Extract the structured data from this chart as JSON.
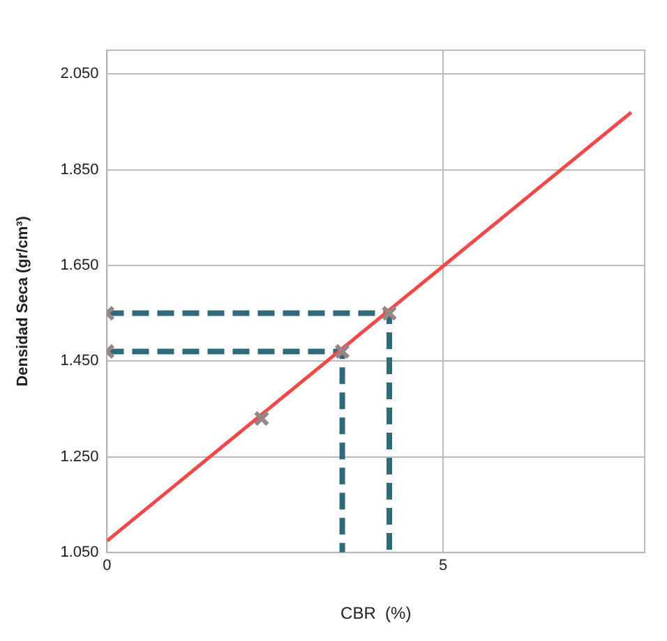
{
  "chart_data": {
    "type": "line",
    "xlabel": "CBR  (%)",
    "ylabel": "Densidad Seca (gr/cm³)",
    "xlim": [
      0,
      8
    ],
    "xticks": [
      0,
      5
    ],
    "ylim": [
      1.05,
      2.1
    ],
    "yticks": [
      {
        "value": 1.05,
        "label": "1.050"
      },
      {
        "value": 1.25,
        "label": "1.250"
      },
      {
        "value": 1.45,
        "label": "1.450"
      },
      {
        "value": 1.65,
        "label": "1.650"
      },
      {
        "value": 1.85,
        "label": "1.850"
      },
      {
        "value": 2.05,
        "label": "2.050"
      }
    ],
    "grid": true,
    "legend": false,
    "series": [
      {
        "type": "line",
        "color": "#f24a4a",
        "x": [
          0,
          7.8
        ],
        "values": [
          1.074,
          1.97
        ],
        "marker": "none",
        "line_style": "solid"
      },
      {
        "type": "line",
        "color": "#2e6a78",
        "x": [
          0,
          4.2,
          4.2
        ],
        "values": [
          1.55,
          1.55,
          1.05
        ],
        "marker": "none",
        "line_style": "dashed"
      },
      {
        "type": "line",
        "color": "#2e6a78",
        "x": [
          0,
          3.5,
          3.5
        ],
        "values": [
          1.47,
          1.47,
          1.05
        ],
        "marker": "none",
        "line_style": "dashed"
      },
      {
        "type": "scatter",
        "color": "#9a8484",
        "x": [
          0,
          0,
          2.3,
          3.5,
          4.2
        ],
        "values": [
          1.47,
          1.55,
          1.33,
          1.47,
          1.55
        ],
        "marker": "cross"
      }
    ]
  }
}
